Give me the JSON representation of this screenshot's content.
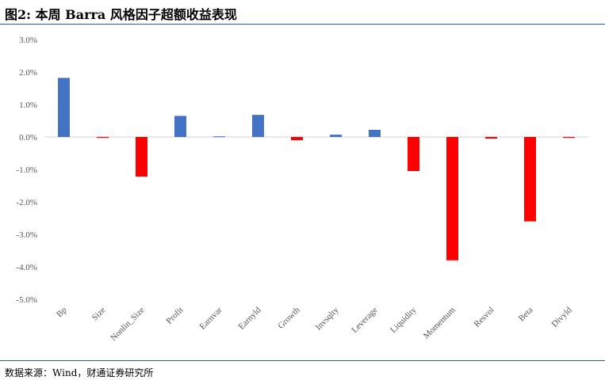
{
  "title": "图2: 本周 Barra 风格因子超额收益表现",
  "source": "数据来源：Wind，财通证券研究所",
  "chart_data": {
    "type": "bar",
    "title": "图2: 本周 Barra 风格因子超额收益表现",
    "xlabel": "",
    "ylabel": "",
    "categories": [
      "Bp",
      "Size",
      "Nonlin_Size",
      "Profit",
      "Earnvar",
      "Earnyld",
      "Growth",
      "Invsqlty",
      "Leverage",
      "Liquidity",
      "Momentum",
      "Resvol",
      "Beta",
      "Divyld"
    ],
    "values": [
      1.82,
      -0.03,
      -1.22,
      0.65,
      0.02,
      0.68,
      -0.1,
      0.07,
      0.22,
      -1.05,
      -3.8,
      -0.05,
      -2.6,
      -0.03
    ],
    "unit": "%",
    "ylim": [
      -5,
      3
    ],
    "yticks": [
      "3.0%",
      "2.0%",
      "1.0%",
      "0.0%",
      "-1.0%",
      "-2.0%",
      "-3.0%",
      "-4.0%",
      "-5.0%"
    ],
    "colors": {
      "positive": "#4472C4",
      "negative": "#FF0000"
    },
    "grid": false,
    "legend": "none"
  }
}
